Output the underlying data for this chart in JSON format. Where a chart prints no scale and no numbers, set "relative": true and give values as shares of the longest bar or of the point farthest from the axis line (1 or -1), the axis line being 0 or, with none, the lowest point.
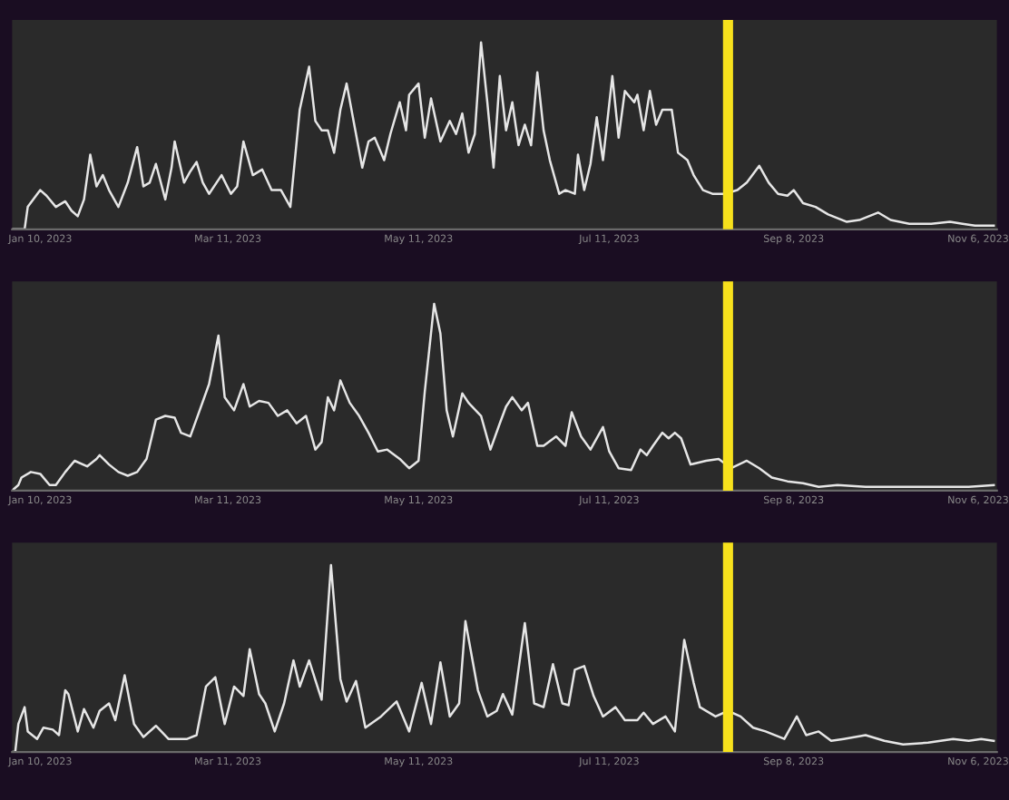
{
  "chart_data": [
    {
      "type": "line",
      "relative": true,
      "xlim": [
        "2023-01-01",
        "2023-11-12"
      ],
      "xticks": [
        {
          "value": "2023-01-10",
          "label": "Jan 10, 2023"
        },
        {
          "value": "2023-03-11",
          "label": "Mar 11, 2023"
        },
        {
          "value": "2023-05-11",
          "label": "May 11, 2023"
        },
        {
          "value": "2023-07-11",
          "label": "Jul 11, 2023"
        },
        {
          "value": "2023-09-08",
          "label": "Sep 8, 2023"
        },
        {
          "value": "2023-11-06",
          "label": "Nov 6, 2023"
        }
      ],
      "grid": false,
      "legend": false,
      "marker": "none",
      "line_style": "solid",
      "ref_lines": [
        {
          "axis": "x",
          "value": "2023-08-18",
          "color": "#f7e11c"
        }
      ],
      "series": [
        {
          "color": "#e6e6e6",
          "x": [
            "2023-01-01",
            "2023-01-05",
            "2023-01-06",
            "2023-01-10",
            "2023-01-12",
            "2023-01-15",
            "2023-01-18",
            "2023-01-20",
            "2023-01-22",
            "2023-01-24",
            "2023-01-26",
            "2023-01-28",
            "2023-01-30",
            "2023-02-01",
            "2023-02-04",
            "2023-02-07",
            "2023-02-10",
            "2023-02-12",
            "2023-02-14",
            "2023-02-16",
            "2023-02-19",
            "2023-02-21",
            "2023-02-22",
            "2023-02-25",
            "2023-02-27",
            "2023-03-01",
            "2023-03-03",
            "2023-03-05",
            "2023-03-09",
            "2023-03-12",
            "2023-03-14",
            "2023-03-16",
            "2023-03-19",
            "2023-03-22",
            "2023-03-25",
            "2023-03-28",
            "2023-03-31",
            "2023-04-03",
            "2023-04-06",
            "2023-04-08",
            "2023-04-10",
            "2023-04-12",
            "2023-04-14",
            "2023-04-16",
            "2023-04-18",
            "2023-04-20",
            "2023-04-23",
            "2023-04-25",
            "2023-04-27",
            "2023-04-30",
            "2023-05-02",
            "2023-05-05",
            "2023-05-07",
            "2023-05-08",
            "2023-05-11",
            "2023-05-13",
            "2023-05-15",
            "2023-05-18",
            "2023-05-21",
            "2023-05-23",
            "2023-05-25",
            "2023-05-27",
            "2023-05-29",
            "2023-05-31",
            "2023-06-02",
            "2023-06-04",
            "2023-06-06",
            "2023-06-08",
            "2023-06-10",
            "2023-06-12",
            "2023-06-14",
            "2023-06-16",
            "2023-06-18",
            "2023-06-20",
            "2023-06-22",
            "2023-06-25",
            "2023-06-27",
            "2023-06-30",
            "2023-07-01",
            "2023-07-03",
            "2023-07-05",
            "2023-07-07",
            "2023-07-09",
            "2023-07-12",
            "2023-07-14",
            "2023-07-16",
            "2023-07-19",
            "2023-07-20",
            "2023-07-22",
            "2023-07-24",
            "2023-07-26",
            "2023-07-28",
            "2023-07-31",
            "2023-08-02",
            "2023-08-05",
            "2023-08-07",
            "2023-08-10",
            "2023-08-13",
            "2023-08-17",
            "2023-08-21",
            "2023-08-24",
            "2023-08-28",
            "2023-08-31",
            "2023-09-03",
            "2023-09-06",
            "2023-09-08",
            "2023-09-11",
            "2023-09-15",
            "2023-09-19",
            "2023-09-25",
            "2023-09-29",
            "2023-10-05",
            "2023-10-09",
            "2023-10-15",
            "2023-10-22",
            "2023-10-28",
            "2023-11-01",
            "2023-11-05",
            "2023-11-11"
          ],
          "values": [
            0,
            0,
            0.12,
            0.21,
            0.18,
            0.12,
            0.15,
            0.1,
            0.07,
            0.16,
            0.4,
            0.23,
            0.29,
            0.21,
            0.12,
            0.25,
            0.44,
            0.23,
            0.25,
            0.35,
            0.16,
            0.33,
            0.47,
            0.25,
            0.31,
            0.36,
            0.25,
            0.19,
            0.29,
            0.19,
            0.23,
            0.47,
            0.29,
            0.32,
            0.21,
            0.21,
            0.12,
            0.64,
            0.87,
            0.58,
            0.53,
            0.53,
            0.41,
            0.64,
            0.78,
            0.6,
            0.33,
            0.47,
            0.49,
            0.37,
            0.51,
            0.68,
            0.53,
            0.72,
            0.78,
            0.49,
            0.7,
            0.47,
            0.58,
            0.51,
            0.62,
            0.41,
            0.51,
            1.0,
            0.68,
            0.33,
            0.82,
            0.53,
            0.68,
            0.45,
            0.56,
            0.45,
            0.84,
            0.53,
            0.37,
            0.19,
            0.21,
            0.19,
            0.4,
            0.21,
            0.35,
            0.6,
            0.37,
            0.82,
            0.49,
            0.74,
            0.68,
            0.72,
            0.53,
            0.74,
            0.56,
            0.64,
            0.64,
            0.41,
            0.37,
            0.29,
            0.21,
            0.19,
            0.19,
            0.21,
            0.25,
            0.34,
            0.25,
            0.19,
            0.18,
            0.21,
            0.14,
            0.12,
            0.08,
            0.04,
            0.05,
            0.09,
            0.05,
            0.03,
            0.03,
            0.04,
            0.03,
            0.02,
            0.02
          ]
        }
      ]
    },
    {
      "type": "line",
      "relative": true,
      "xlim": [
        "2023-01-01",
        "2023-11-12"
      ],
      "xticks": [
        {
          "value": "2023-01-10",
          "label": "Jan 10, 2023"
        },
        {
          "value": "2023-03-11",
          "label": "Mar 11, 2023"
        },
        {
          "value": "2023-05-11",
          "label": "May 11, 2023"
        },
        {
          "value": "2023-07-11",
          "label": "Jul 11, 2023"
        },
        {
          "value": "2023-09-08",
          "label": "Sep 8, 2023"
        },
        {
          "value": "2023-11-06",
          "label": "Nov 6, 2023"
        }
      ],
      "grid": false,
      "legend": false,
      "marker": "none",
      "line_style": "solid",
      "ref_lines": [
        {
          "axis": "x",
          "value": "2023-08-18",
          "color": "#f7e11c"
        }
      ],
      "series": [
        {
          "color": "#e6e6e6",
          "x": [
            "2023-01-01",
            "2023-01-03",
            "2023-01-04",
            "2023-01-07",
            "2023-01-10",
            "2023-01-13",
            "2023-01-15",
            "2023-01-18",
            "2023-01-21",
            "2023-01-25",
            "2023-01-28",
            "2023-01-29",
            "2023-02-01",
            "2023-02-04",
            "2023-02-07",
            "2023-02-10",
            "2023-02-13",
            "2023-02-16",
            "2023-02-19",
            "2023-02-22",
            "2023-02-24",
            "2023-02-27",
            "2023-03-02",
            "2023-03-05",
            "2023-03-08",
            "2023-03-10",
            "2023-03-13",
            "2023-03-16",
            "2023-03-18",
            "2023-03-21",
            "2023-03-24",
            "2023-03-27",
            "2023-03-30",
            "2023-04-02",
            "2023-04-05",
            "2023-04-08",
            "2023-04-10",
            "2023-04-12",
            "2023-04-14",
            "2023-04-16",
            "2023-04-19",
            "2023-04-22",
            "2023-04-25",
            "2023-04-28",
            "2023-05-01",
            "2023-05-05",
            "2023-05-08",
            "2023-05-11",
            "2023-05-13",
            "2023-05-16",
            "2023-05-18",
            "2023-05-20",
            "2023-05-22",
            "2023-05-25",
            "2023-05-27",
            "2023-05-31",
            "2023-06-03",
            "2023-06-06",
            "2023-06-08",
            "2023-06-10",
            "2023-06-13",
            "2023-06-15",
            "2023-06-18",
            "2023-06-20",
            "2023-06-24",
            "2023-06-27",
            "2023-06-29",
            "2023-07-02",
            "2023-07-05",
            "2023-07-09",
            "2023-07-11",
            "2023-07-14",
            "2023-07-18",
            "2023-07-21",
            "2023-07-23",
            "2023-07-25",
            "2023-07-28",
            "2023-07-30",
            "2023-08-01",
            "2023-08-03",
            "2023-08-06",
            "2023-08-11",
            "2023-08-15",
            "2023-08-19",
            "2023-08-24",
            "2023-08-28",
            "2023-09-01",
            "2023-09-06",
            "2023-09-11",
            "2023-09-16",
            "2023-09-22",
            "2023-10-01",
            "2023-10-09",
            "2023-10-17",
            "2023-10-26",
            "2023-11-03",
            "2023-11-11"
          ],
          "values": [
            0,
            0.03,
            0.07,
            0.1,
            0.09,
            0.03,
            0.03,
            0.1,
            0.16,
            0.13,
            0.17,
            0.19,
            0.14,
            0.1,
            0.08,
            0.1,
            0.17,
            0.38,
            0.4,
            0.39,
            0.31,
            0.29,
            0.43,
            0.57,
            0.83,
            0.5,
            0.43,
            0.57,
            0.45,
            0.48,
            0.47,
            0.4,
            0.43,
            0.36,
            0.4,
            0.22,
            0.26,
            0.5,
            0.43,
            0.59,
            0.47,
            0.4,
            0.31,
            0.21,
            0.22,
            0.17,
            0.12,
            0.16,
            0.53,
            1.0,
            0.84,
            0.43,
            0.29,
            0.52,
            0.47,
            0.4,
            0.22,
            0.36,
            0.45,
            0.5,
            0.43,
            0.47,
            0.24,
            0.24,
            0.29,
            0.24,
            0.42,
            0.29,
            0.22,
            0.34,
            0.21,
            0.12,
            0.11,
            0.22,
            0.19,
            0.24,
            0.31,
            0.28,
            0.31,
            0.28,
            0.14,
            0.16,
            0.17,
            0.12,
            0.16,
            0.12,
            0.07,
            0.05,
            0.04,
            0.02,
            0.03,
            0.02,
            0.02,
            0.02,
            0.02,
            0.02,
            0.03
          ]
        }
      ]
    },
    {
      "type": "line",
      "relative": true,
      "xlim": [
        "2023-01-01",
        "2023-11-12"
      ],
      "xticks": [
        {
          "value": "2023-01-10",
          "label": "Jan 10, 2023"
        },
        {
          "value": "2023-03-11",
          "label": "Mar 11, 2023"
        },
        {
          "value": "2023-05-11",
          "label": "May 11, 2023"
        },
        {
          "value": "2023-07-11",
          "label": "Jul 11, 2023"
        },
        {
          "value": "2023-09-08",
          "label": "Sep 8, 2023"
        },
        {
          "value": "2023-11-06",
          "label": "Nov 6, 2023"
        }
      ],
      "grid": false,
      "legend": false,
      "marker": "none",
      "line_style": "solid",
      "ref_lines": [
        {
          "axis": "x",
          "value": "2023-08-18",
          "color": "#f7e11c"
        }
      ],
      "series": [
        {
          "color": "#e6e6e6",
          "x": [
            "2023-01-01",
            "2023-01-02",
            "2023-01-03",
            "2023-01-05",
            "2023-01-06",
            "2023-01-09",
            "2023-01-11",
            "2023-01-14",
            "2023-01-16",
            "2023-01-18",
            "2023-01-19",
            "2023-01-22",
            "2023-01-24",
            "2023-01-27",
            "2023-01-29",
            "2023-02-01",
            "2023-02-03",
            "2023-02-06",
            "2023-02-09",
            "2023-02-12",
            "2023-02-16",
            "2023-02-20",
            "2023-02-26",
            "2023-03-01",
            "2023-03-04",
            "2023-03-07",
            "2023-03-10",
            "2023-03-13",
            "2023-03-16",
            "2023-03-18",
            "2023-03-21",
            "2023-03-23",
            "2023-03-26",
            "2023-03-29",
            "2023-04-01",
            "2023-04-03",
            "2023-04-06",
            "2023-04-10",
            "2023-04-13",
            "2023-04-16",
            "2023-04-18",
            "2023-04-21",
            "2023-04-24",
            "2023-04-29",
            "2023-05-04",
            "2023-05-08",
            "2023-05-12",
            "2023-05-15",
            "2023-05-18",
            "2023-05-21",
            "2023-05-24",
            "2023-05-26",
            "2023-05-30",
            "2023-06-02",
            "2023-06-05",
            "2023-06-07",
            "2023-06-10",
            "2023-06-14",
            "2023-06-17",
            "2023-06-20",
            "2023-06-23",
            "2023-06-26",
            "2023-06-28",
            "2023-06-30",
            "2023-07-03",
            "2023-07-06",
            "2023-07-09",
            "2023-07-13",
            "2023-07-16",
            "2023-07-20",
            "2023-07-22",
            "2023-07-25",
            "2023-07-29",
            "2023-08-01",
            "2023-08-04",
            "2023-08-07",
            "2023-08-09",
            "2023-08-14",
            "2023-08-18",
            "2023-08-22",
            "2023-08-26",
            "2023-08-30",
            "2023-09-05",
            "2023-09-09",
            "2023-09-12",
            "2023-09-16",
            "2023-09-20",
            "2023-09-24",
            "2023-10-01",
            "2023-10-07",
            "2023-10-13",
            "2023-10-21",
            "2023-10-29",
            "2023-11-03",
            "2023-11-07",
            "2023-11-11"
          ],
          "values": [
            0,
            0,
            0.15,
            0.24,
            0.11,
            0.07,
            0.13,
            0.12,
            0.09,
            0.33,
            0.31,
            0.11,
            0.23,
            0.13,
            0.22,
            0.26,
            0.17,
            0.41,
            0.15,
            0.08,
            0.14,
            0.07,
            0.07,
            0.09,
            0.35,
            0.4,
            0.15,
            0.35,
            0.3,
            0.55,
            0.31,
            0.26,
            0.11,
            0.26,
            0.49,
            0.35,
            0.49,
            0.28,
            1.0,
            0.39,
            0.27,
            0.38,
            0.13,
            0.19,
            0.27,
            0.11,
            0.37,
            0.15,
            0.48,
            0.19,
            0.26,
            0.7,
            0.33,
            0.19,
            0.22,
            0.31,
            0.2,
            0.69,
            0.26,
            0.24,
            0.47,
            0.26,
            0.25,
            0.44,
            0.46,
            0.3,
            0.19,
            0.24,
            0.17,
            0.17,
            0.21,
            0.15,
            0.19,
            0.11,
            0.6,
            0.37,
            0.24,
            0.19,
            0.22,
            0.19,
            0.13,
            0.11,
            0.07,
            0.19,
            0.09,
            0.11,
            0.06,
            0.07,
            0.09,
            0.06,
            0.04,
            0.05,
            0.07,
            0.06,
            0.07,
            0.06
          ]
        }
      ]
    }
  ]
}
